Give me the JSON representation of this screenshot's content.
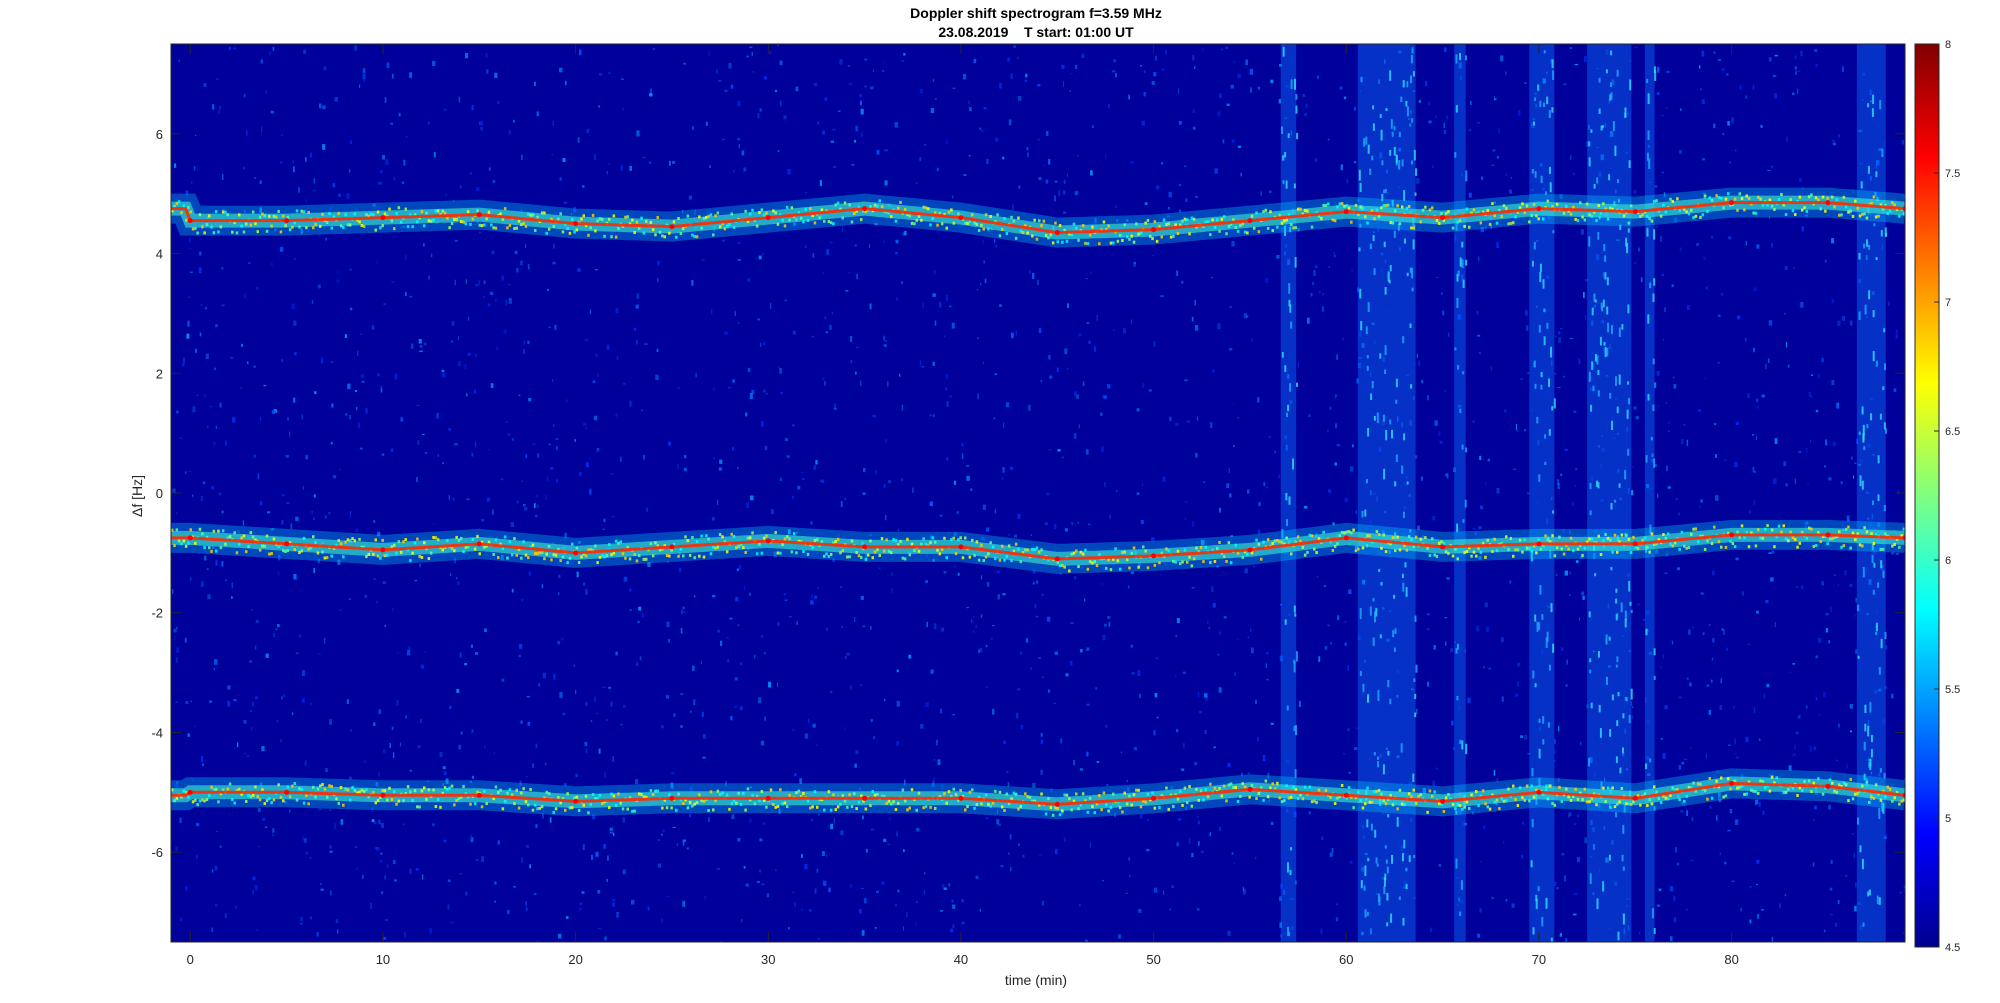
{
  "chart_data": {
    "type": "heatmap",
    "title": "Doppler shift spectrogram f=3.59 MHz",
    "subtitle": "23.08.2019    T start: 01:00 UT",
    "xlabel": "time (min)",
    "ylabel": "Δf [Hz]",
    "xlim": [
      -1,
      89
    ],
    "ylim": [
      -7.5,
      7.5
    ],
    "x_ticks": [
      0,
      10,
      20,
      30,
      40,
      50,
      60,
      70,
      80
    ],
    "y_ticks": [
      -6,
      -4,
      -2,
      0,
      2,
      4,
      6
    ],
    "colorbar": {
      "colormap": "jet",
      "range": [
        4.5,
        8
      ],
      "ticks": [
        "4.5",
        "5",
        "5.5",
        "6",
        "6.5",
        "7",
        "7.5",
        "8"
      ]
    },
    "series": [
      {
        "x": [
          0,
          5,
          10,
          15,
          20,
          25,
          30,
          35,
          40,
          45,
          50,
          55,
          60,
          65,
          70,
          75,
          80,
          85,
          89
        ],
        "y": [
          4.55,
          4.55,
          4.6,
          4.65,
          4.5,
          4.45,
          4.6,
          4.75,
          4.6,
          4.35,
          4.4,
          4.55,
          4.7,
          4.6,
          4.75,
          4.7,
          4.85,
          4.85,
          4.75
        ]
      },
      {
        "x": [
          0,
          5,
          10,
          15,
          20,
          25,
          30,
          35,
          40,
          45,
          50,
          55,
          60,
          65,
          70,
          75,
          80,
          85,
          89
        ],
        "y": [
          -0.75,
          -0.85,
          -0.95,
          -0.85,
          -1.0,
          -0.9,
          -0.8,
          -0.9,
          -0.9,
          -1.1,
          -1.05,
          -0.95,
          -0.75,
          -0.9,
          -0.85,
          -0.85,
          -0.7,
          -0.7,
          -0.75
        ]
      },
      {
        "x": [
          0,
          5,
          10,
          15,
          20,
          25,
          30,
          35,
          40,
          45,
          50,
          55,
          60,
          65,
          70,
          75,
          80,
          85,
          89
        ],
        "y": [
          -5.0,
          -5.0,
          -5.05,
          -5.05,
          -5.15,
          -5.1,
          -5.1,
          -5.1,
          -5.1,
          -5.2,
          -5.1,
          -4.95,
          -5.05,
          -5.15,
          -5.0,
          -5.1,
          -4.85,
          -4.9,
          -5.05
        ]
      }
    ],
    "interference_bands_min": [
      [
        56.6,
        57.4
      ],
      [
        60.6,
        63.6
      ],
      [
        65.6,
        66.2
      ],
      [
        69.5,
        70.8
      ],
      [
        72.5,
        74.8
      ],
      [
        75.5,
        76.0
      ],
      [
        86.5,
        88.0
      ]
    ]
  }
}
